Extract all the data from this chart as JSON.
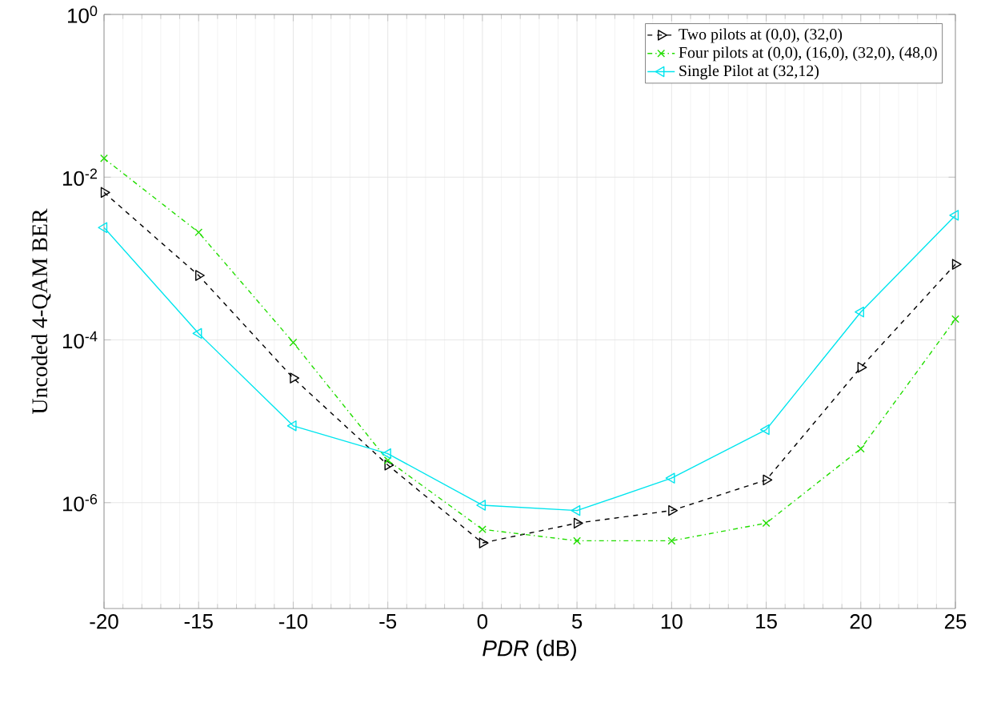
{
  "chart_data": {
    "type": "line",
    "xlabel": "*PDR* (dB)",
    "ylabel": "Uncoded 4-QAM BER",
    "log": "y",
    "x": [
      -20,
      -15,
      -10,
      -5,
      0,
      5,
      10,
      15,
      20,
      25
    ],
    "xlim": [
      -20,
      25
    ],
    "xticks": [
      -20,
      -15,
      -10,
      -5,
      0,
      5,
      10,
      15,
      20,
      25
    ],
    "ylim": [
      5e-08,
      1
    ],
    "yticks": [
      {
        "value": 1,
        "label": "10$^{0}$"
      },
      {
        "value": 0.01,
        "label": "10$^{-2}$"
      },
      {
        "value": 0.0001,
        "label": "10$^{-4}$"
      },
      {
        "value": 1e-06,
        "label": "10$^{-6}$"
      }
    ],
    "grid": true,
    "legend": "top right",
    "series": [
      {
        "name": "Two pilots at (0,0), (32,0)",
        "color": "#000000",
        "marker": "triangle-right",
        "line_style": "dashed",
        "values": [
          0.0065,
          0.00062,
          3.4e-05,
          2.9e-06,
          3.2e-07,
          5.6e-07,
          8e-07,
          1.9e-06,
          4.6e-05,
          0.00085
        ]
      },
      {
        "name": "Four pilots at (0,0), (16,0), (32,0), (48,0)",
        "color": "#22dd00",
        "marker": "cross",
        "line_style": "dashdot",
        "values": [
          0.017,
          0.0021,
          9.3e-05,
          3.3e-06,
          4.7e-07,
          3.4e-07,
          3.4e-07,
          5.6e-07,
          4.6e-06,
          0.00018
        ]
      },
      {
        "name": "Single Pilot at (32,12)",
        "color": "#00e5ee",
        "marker": "triangle-left",
        "line_style": "solid",
        "values": [
          0.0024,
          0.00012,
          8.8e-06,
          4e-06,
          9.3e-07,
          8e-07,
          2e-06,
          7.9e-06,
          0.00022,
          0.0034
        ]
      }
    ]
  }
}
